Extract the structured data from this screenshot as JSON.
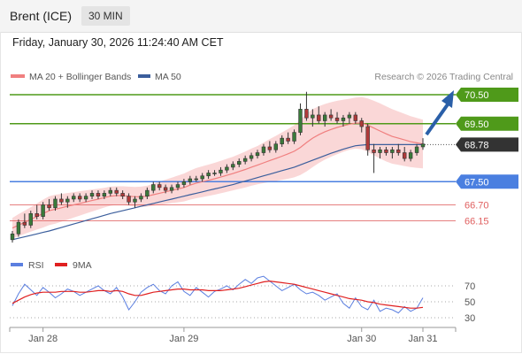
{
  "header": {
    "instrument": "Brent (ICE)",
    "timeframe": "30 MIN"
  },
  "datetime": "Friday, January 30, 2026 11:24:40 AM CET",
  "credit": "Research © 2026 Trading Central",
  "colors": {
    "up": "#3a7a3a",
    "down": "#b03a3a",
    "ma20": "#f07f7f",
    "band": "#f8c9c9",
    "ma50": "#3b5e9c",
    "resistance": "#4f9a1a",
    "support": "#4a7fe0",
    "support2": "#e06060",
    "price": "#333333",
    "rsi": "#5b7fe0",
    "rsi_ma": "#e02020",
    "arrow": "#2a5fa8"
  },
  "chart_data": [
    {
      "type": "candlestick",
      "legend": [
        {
          "name": "MA 20 + Bollinger Bands",
          "color": "#f07f7f"
        },
        {
          "name": "MA 50",
          "color": "#3b5e9c"
        }
      ],
      "ylim": [
        65.0,
        71.1
      ],
      "levels": [
        {
          "value": 70.5,
          "label": "70.50",
          "kind": "resistance"
        },
        {
          "value": 69.5,
          "label": "69.50",
          "kind": "resistance"
        },
        {
          "value": 68.78,
          "label": "68.78",
          "kind": "price"
        },
        {
          "value": 67.5,
          "label": "67.50",
          "kind": "support"
        },
        {
          "value": 66.7,
          "label": "66.70",
          "kind": "support2"
        },
        {
          "value": 66.15,
          "label": "66.15",
          "kind": "support2"
        }
      ],
      "candles": [
        [
          65.5,
          65.8,
          65.4,
          65.7
        ],
        [
          65.7,
          66.2,
          65.6,
          66.1
        ],
        [
          66.1,
          66.4,
          65.9,
          66.0
        ],
        [
          66.0,
          66.5,
          65.9,
          66.4
        ],
        [
          66.4,
          66.7,
          66.2,
          66.3
        ],
        [
          66.3,
          66.8,
          66.2,
          66.7
        ],
        [
          66.7,
          66.9,
          66.5,
          66.6
        ],
        [
          66.6,
          67.0,
          66.5,
          66.9
        ],
        [
          66.9,
          67.1,
          66.7,
          66.8
        ],
        [
          66.8,
          67.0,
          66.6,
          66.9
        ],
        [
          66.9,
          67.1,
          66.8,
          67.0
        ],
        [
          67.0,
          67.1,
          66.8,
          66.9
        ],
        [
          66.9,
          67.1,
          66.8,
          67.0
        ],
        [
          67.0,
          67.2,
          66.9,
          67.1
        ],
        [
          67.1,
          67.2,
          66.9,
          67.0
        ],
        [
          67.0,
          67.2,
          66.9,
          67.1
        ],
        [
          67.1,
          67.3,
          67.0,
          67.2
        ],
        [
          67.2,
          67.3,
          67.0,
          67.1
        ],
        [
          67.1,
          67.2,
          66.9,
          67.0
        ],
        [
          67.0,
          67.1,
          66.7,
          66.8
        ],
        [
          66.8,
          67.0,
          66.6,
          66.9
        ],
        [
          66.9,
          67.1,
          66.8,
          67.0
        ],
        [
          67.0,
          67.3,
          66.9,
          67.2
        ],
        [
          67.2,
          67.5,
          67.1,
          67.4
        ],
        [
          67.4,
          67.5,
          67.2,
          67.3
        ],
        [
          67.3,
          67.4,
          67.1,
          67.2
        ],
        [
          67.2,
          67.4,
          67.1,
          67.3
        ],
        [
          67.3,
          67.5,
          67.2,
          67.4
        ],
        [
          67.4,
          67.6,
          67.3,
          67.5
        ],
        [
          67.5,
          67.7,
          67.4,
          67.6
        ],
        [
          67.6,
          67.7,
          67.5,
          67.6
        ],
        [
          67.6,
          67.8,
          67.5,
          67.7
        ],
        [
          67.7,
          67.9,
          67.6,
          67.8
        ],
        [
          67.8,
          67.9,
          67.7,
          67.8
        ],
        [
          67.8,
          68.0,
          67.7,
          67.9
        ],
        [
          67.9,
          68.1,
          67.8,
          68.0
        ],
        [
          68.0,
          68.2,
          67.9,
          68.1
        ],
        [
          68.1,
          68.3,
          68.0,
          68.2
        ],
        [
          68.2,
          68.4,
          68.1,
          68.3
        ],
        [
          68.3,
          68.5,
          68.2,
          68.4
        ],
        [
          68.4,
          68.6,
          68.3,
          68.5
        ],
        [
          68.5,
          68.8,
          68.4,
          68.7
        ],
        [
          68.7,
          68.9,
          68.5,
          68.6
        ],
        [
          68.6,
          68.9,
          68.5,
          68.8
        ],
        [
          68.8,
          69.1,
          68.7,
          69.0
        ],
        [
          69.0,
          69.2,
          68.8,
          68.9
        ],
        [
          68.9,
          69.3,
          68.8,
          69.2
        ],
        [
          69.2,
          70.2,
          69.1,
          70.0
        ],
        [
          70.0,
          70.6,
          69.6,
          69.7
        ],
        [
          69.7,
          70.0,
          69.4,
          69.8
        ],
        [
          69.8,
          70.1,
          69.5,
          69.6
        ],
        [
          69.6,
          69.9,
          69.4,
          69.8
        ],
        [
          69.8,
          70.0,
          69.6,
          69.7
        ],
        [
          69.7,
          69.9,
          69.5,
          69.6
        ],
        [
          69.6,
          69.8,
          69.4,
          69.7
        ],
        [
          69.7,
          69.9,
          69.5,
          69.8
        ],
        [
          69.8,
          69.9,
          69.5,
          69.6
        ],
        [
          69.6,
          69.7,
          69.2,
          69.4
        ],
        [
          69.4,
          69.5,
          68.4,
          68.6
        ],
        [
          68.6,
          68.8,
          67.8,
          68.5
        ],
        [
          68.5,
          68.7,
          68.3,
          68.6
        ],
        [
          68.6,
          68.7,
          68.4,
          68.5
        ],
        [
          68.5,
          68.7,
          68.3,
          68.6
        ],
        [
          68.6,
          68.8,
          68.4,
          68.5
        ],
        [
          68.5,
          68.7,
          68.2,
          68.3
        ],
        [
          68.3,
          68.6,
          68.2,
          68.5
        ],
        [
          68.5,
          68.8,
          68.4,
          68.7
        ],
        [
          68.7,
          69.0,
          68.6,
          68.8
        ]
      ],
      "ma20": [
        65.9,
        66.0,
        66.1,
        66.2,
        66.3,
        66.4,
        66.5,
        66.55,
        66.6,
        66.65,
        66.7,
        66.75,
        66.8,
        66.85,
        66.9,
        66.95,
        67.0,
        67.02,
        67.02,
        67.0,
        66.98,
        66.98,
        67.0,
        67.05,
        67.1,
        67.15,
        67.2,
        67.25,
        67.3,
        67.38,
        67.45,
        67.5,
        67.55,
        67.6,
        67.66,
        67.72,
        67.78,
        67.85,
        67.92,
        68.0,
        68.07,
        68.15,
        68.23,
        68.3,
        68.38,
        68.46,
        68.55,
        68.68,
        68.85,
        69.0,
        69.12,
        69.22,
        69.3,
        69.37,
        69.43,
        69.48,
        69.52,
        69.52,
        69.45,
        69.35,
        69.25,
        69.15,
        69.06,
        69.0,
        68.94,
        68.88,
        68.84,
        68.8
      ],
      "ma50": [
        65.5,
        65.55,
        65.6,
        65.65,
        65.7,
        65.75,
        65.8,
        65.86,
        65.92,
        65.98,
        66.04,
        66.1,
        66.16,
        66.22,
        66.28,
        66.34,
        66.4,
        66.45,
        66.5,
        66.55,
        66.6,
        66.65,
        66.7,
        66.75,
        66.8,
        66.85,
        66.9,
        66.95,
        67.0,
        67.05,
        67.1,
        67.15,
        67.2,
        67.25,
        67.3,
        67.35,
        67.4,
        67.46,
        67.52,
        67.58,
        67.64,
        67.7,
        67.76,
        67.82,
        67.88,
        67.94,
        68.0,
        68.08,
        68.16,
        68.24,
        68.32,
        68.4,
        68.48,
        68.55,
        68.62,
        68.68,
        68.74,
        68.76,
        68.78,
        68.78,
        68.78,
        68.78,
        68.78,
        68.78,
        68.78,
        68.78,
        68.78,
        68.78
      ],
      "band_width": [
        0.35,
        0.38,
        0.4,
        0.42,
        0.45,
        0.48,
        0.5,
        0.5,
        0.48,
        0.46,
        0.44,
        0.42,
        0.4,
        0.38,
        0.36,
        0.34,
        0.33,
        0.32,
        0.32,
        0.33,
        0.34,
        0.35,
        0.36,
        0.38,
        0.4,
        0.42,
        0.44,
        0.46,
        0.48,
        0.5,
        0.52,
        0.53,
        0.54,
        0.55,
        0.56,
        0.57,
        0.58,
        0.6,
        0.62,
        0.64,
        0.66,
        0.7,
        0.74,
        0.78,
        0.82,
        0.86,
        0.9,
        0.95,
        1.0,
        1.0,
        0.98,
        0.96,
        0.94,
        0.92,
        0.9,
        0.88,
        0.88,
        0.9,
        0.92,
        0.94,
        0.95,
        0.95,
        0.94,
        0.92,
        0.9,
        0.88,
        0.86,
        0.84
      ]
    },
    {
      "type": "line",
      "legend": [
        {
          "name": "RSI",
          "color": "#5b7fe0"
        },
        {
          "name": "9MA",
          "color": "#e02020"
        }
      ],
      "ylim": [
        20,
        80
      ],
      "yticks": [
        70,
        50,
        30
      ],
      "rsi": [
        45,
        60,
        72,
        65,
        58,
        68,
        62,
        55,
        60,
        66,
        63,
        58,
        62,
        66,
        70,
        64,
        60,
        68,
        56,
        40,
        50,
        62,
        68,
        72,
        64,
        60,
        70,
        75,
        63,
        58,
        68,
        62,
        56,
        63,
        66,
        70,
        65,
        72,
        78,
        73,
        80,
        82,
        76,
        70,
        64,
        68,
        72,
        65,
        60,
        62,
        58,
        52,
        56,
        60,
        48,
        42,
        55,
        44,
        40,
        52,
        38,
        42,
        40,
        36,
        44,
        38,
        42,
        55
      ],
      "rsi_ma": [
        48,
        52,
        56,
        59,
        61,
        62,
        62,
        62,
        63,
        63,
        63,
        62,
        62,
        63,
        64,
        64,
        63,
        64,
        63,
        60,
        58,
        58,
        60,
        62,
        63,
        64,
        65,
        66,
        66,
        65,
        65,
        65,
        64,
        64,
        64,
        65,
        66,
        67,
        69,
        71,
        73,
        75,
        76,
        75,
        74,
        73,
        72,
        70,
        68,
        66,
        64,
        62,
        60,
        58,
        56,
        54,
        53,
        52,
        50,
        49,
        47,
        46,
        45,
        44,
        43,
        42,
        42,
        43
      ]
    }
  ],
  "x_axis": {
    "ticks": [
      {
        "index": 5,
        "label": "Jan 28"
      },
      {
        "index": 28,
        "label": "Jan 29"
      },
      {
        "index": 57,
        "label": "Jan 30"
      },
      {
        "index": 67,
        "label": "Jan 31"
      }
    ]
  }
}
